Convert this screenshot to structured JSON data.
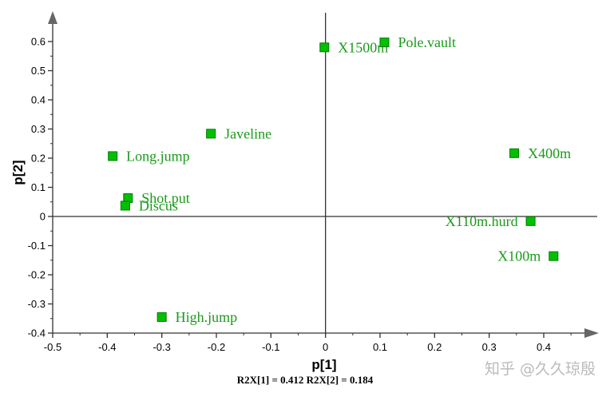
{
  "chart_data": {
    "type": "scatter",
    "xlabel": "p[1]",
    "ylabel": "p[2]",
    "xlim": [
      -0.5,
      0.45
    ],
    "ylim": [
      -0.4,
      0.65
    ],
    "x_ticks": [
      "-0.5",
      "-0.4",
      "-0.3",
      "-0.2",
      "-0.1",
      "0",
      "0.1",
      "0.2",
      "0.3",
      "0.4"
    ],
    "y_ticks": [
      "0.6",
      "0.5",
      "0.4",
      "0.3",
      "0.2",
      "0.1",
      "0",
      "-0.1",
      "-0.2",
      "-0.3",
      "-0.4"
    ],
    "footer": "R2X[1] = 0.412 R2X[2] = 0.184",
    "marker_color": "#00c000",
    "label_color": "#1a9a1a",
    "points": [
      {
        "label": "X1500m",
        "x": -0.002,
        "y": 0.58
      },
      {
        "label": "Pole.vault",
        "x": 0.108,
        "y": 0.597
      },
      {
        "label": "Javeline",
        "x": -0.21,
        "y": 0.284
      },
      {
        "label": "Long.jump",
        "x": -0.39,
        "y": 0.207
      },
      {
        "label": "X400m",
        "x": 0.346,
        "y": 0.217
      },
      {
        "label": "Shot.put",
        "x": -0.362,
        "y": 0.063
      },
      {
        "label": "Discus",
        "x": -0.367,
        "y": 0.037
      },
      {
        "label": "X110m.hurd",
        "x": 0.376,
        "y": -0.016
      },
      {
        "label": "X100m",
        "x": 0.418,
        "y": -0.136
      },
      {
        "label": "High.jump",
        "x": -0.3,
        "y": -0.345
      }
    ]
  },
  "watermark": "知乎 @久久琼殷"
}
